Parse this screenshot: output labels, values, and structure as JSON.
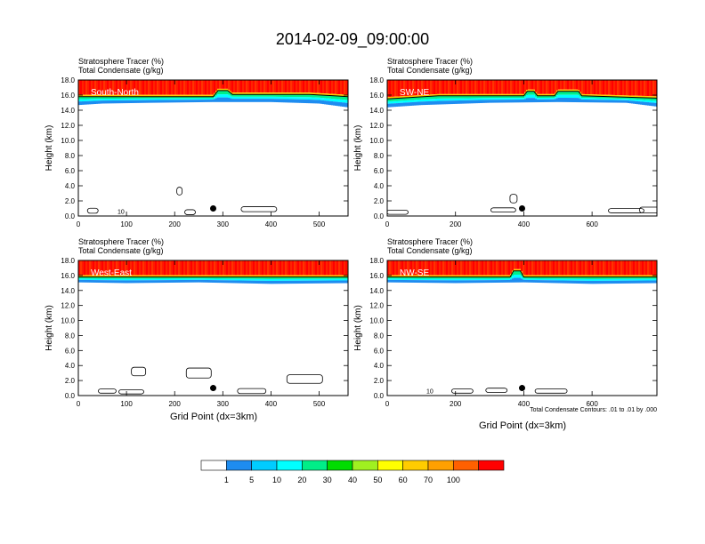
{
  "title": "2014-02-09_09:00:00",
  "panel_header_line1": "Stratosphere Tracer   (%)",
  "panel_header_line2": "Total Condensate   (g/kg)",
  "ylabel": "Height (km)",
  "xlabel": "Grid Point (dx=3km)",
  "contour_note": "Total Condensate Contours: .01 to .01 by .000",
  "colorbar": {
    "colors": [
      "#ffffff",
      "#1e8cf0",
      "#00ccff",
      "#00ffff",
      "#00ee88",
      "#00dd00",
      "#a0f020",
      "#ffff00",
      "#ffcc00",
      "#ffa000",
      "#ff6000",
      "#ff0000"
    ],
    "labels": [
      "1",
      "5",
      "10",
      "20",
      "30",
      "40",
      "50",
      "60",
      "70",
      "100"
    ]
  },
  "chart_data": [
    {
      "type": "heatmap",
      "panel": "South-North",
      "xlim": [
        0,
        560
      ],
      "ylim": [
        0,
        18
      ],
      "xticks": [
        "0",
        "100",
        "200",
        "300",
        "400",
        "500"
      ],
      "xtick_values": [
        0,
        100,
        200,
        300,
        400,
        500
      ],
      "yticks": [
        "0.0",
        "2.0",
        "4.0",
        "6.0",
        "8.0",
        "10.0",
        "12.0",
        "14.0",
        "16.0",
        "18.0"
      ],
      "tropopause_km": [
        [
          0,
          15.8
        ],
        [
          280,
          15.8
        ],
        [
          290,
          16.6
        ],
        [
          310,
          16.6
        ],
        [
          320,
          16.1
        ],
        [
          400,
          16.1
        ],
        [
          480,
          16.1
        ],
        [
          560,
          15.8
        ]
      ],
      "tracer_base_km": [
        [
          0,
          14.8
        ],
        [
          50,
          15.0
        ],
        [
          150,
          15.1
        ],
        [
          280,
          15.2
        ],
        [
          400,
          15.2
        ],
        [
          500,
          15.0
        ],
        [
          560,
          14.5
        ]
      ],
      "marker_x": 280,
      "marker_y": 1.0,
      "label_10": "10"
    },
    {
      "type": "heatmap",
      "panel": "SW-NE",
      "xlim": [
        0,
        790
      ],
      "ylim": [
        0,
        18
      ],
      "xticks": [
        "0",
        "200",
        "400",
        "600"
      ],
      "xtick_values": [
        0,
        200,
        400,
        600
      ],
      "yticks": [
        "0.0",
        "2.0",
        "4.0",
        "6.0",
        "8.0",
        "10.0",
        "12.0",
        "14.0",
        "16.0",
        "18.0"
      ],
      "tropopause_km": [
        [
          0,
          15.5
        ],
        [
          150,
          15.9
        ],
        [
          400,
          15.9
        ],
        [
          410,
          16.5
        ],
        [
          430,
          16.5
        ],
        [
          440,
          15.9
        ],
        [
          490,
          15.9
        ],
        [
          500,
          16.5
        ],
        [
          560,
          16.5
        ],
        [
          570,
          15.9
        ],
        [
          790,
          15.6
        ]
      ],
      "tracer_base_km": [
        [
          0,
          14.5
        ],
        [
          100,
          14.8
        ],
        [
          300,
          15.1
        ],
        [
          500,
          15.2
        ],
        [
          700,
          15.1
        ],
        [
          790,
          14.6
        ]
      ],
      "marker_x": 395,
      "marker_y": 1.0,
      "label_10": ""
    },
    {
      "type": "heatmap",
      "panel": "West-East",
      "xlim": [
        0,
        560
      ],
      "ylim": [
        0,
        18
      ],
      "xticks": [
        "0",
        "100",
        "200",
        "300",
        "400",
        "500"
      ],
      "xtick_values": [
        0,
        100,
        200,
        300,
        400,
        500
      ],
      "yticks": [
        "0.0",
        "2.0",
        "4.0",
        "6.0",
        "8.0",
        "10.0",
        "12.0",
        "14.0",
        "16.0",
        "18.0"
      ],
      "tropopause_km": [
        [
          0,
          15.8
        ],
        [
          560,
          15.8
        ]
      ],
      "tracer_base_km": [
        [
          0,
          15.2
        ],
        [
          100,
          15.1
        ],
        [
          250,
          15.2
        ],
        [
          400,
          15.0
        ],
        [
          560,
          15.1
        ]
      ],
      "marker_x": 280,
      "marker_y": 1.0,
      "label_10": ""
    },
    {
      "type": "heatmap",
      "panel": "NW-SE",
      "xlim": [
        0,
        790
      ],
      "ylim": [
        0,
        18
      ],
      "xticks": [
        "0",
        "200",
        "400",
        "600"
      ],
      "xtick_values": [
        0,
        200,
        400,
        600
      ],
      "yticks": [
        "0.0",
        "2.0",
        "4.0",
        "6.0",
        "8.0",
        "10.0",
        "12.0",
        "14.0",
        "16.0",
        "18.0"
      ],
      "tropopause_km": [
        [
          0,
          15.8
        ],
        [
          360,
          15.8
        ],
        [
          370,
          16.6
        ],
        [
          390,
          16.6
        ],
        [
          400,
          15.8
        ],
        [
          790,
          15.8
        ]
      ],
      "tracer_base_km": [
        [
          0,
          15.2
        ],
        [
          200,
          15.1
        ],
        [
          400,
          15.2
        ],
        [
          600,
          15.0
        ],
        [
          790,
          15.1
        ]
      ],
      "marker_x": 395,
      "marker_y": 1.0,
      "label_10": "10"
    }
  ]
}
